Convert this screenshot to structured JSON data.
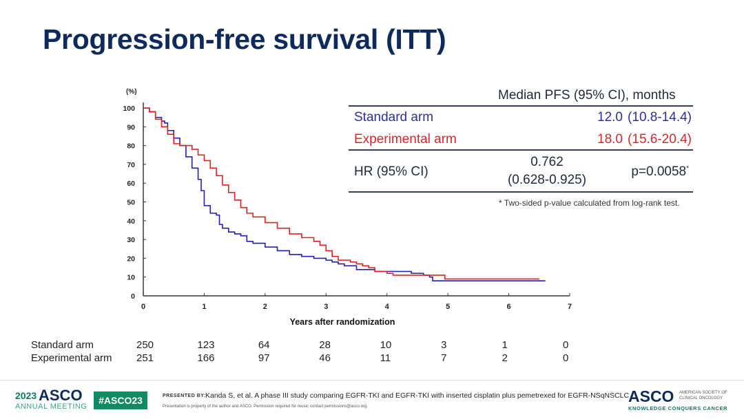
{
  "title": "Progression-free survival (ITT)",
  "chart_data": {
    "type": "line",
    "subtype": "kaplan-meier",
    "ylabel": "(%)",
    "xlabel": "Years after randomization",
    "xlim": [
      0,
      7
    ],
    "ylim": [
      0,
      100
    ],
    "xticks": [
      0,
      1,
      2,
      3,
      4,
      5,
      6,
      7
    ],
    "yticks": [
      0,
      10,
      20,
      30,
      40,
      50,
      60,
      70,
      80,
      90,
      100
    ],
    "grid": false,
    "series": [
      {
        "name": "Standard arm",
        "color": "#1f1fb0",
        "x": [
          0,
          0.1,
          0.2,
          0.3,
          0.35,
          0.4,
          0.5,
          0.6,
          0.7,
          0.8,
          0.9,
          0.95,
          1.0,
          1.1,
          1.2,
          1.25,
          1.3,
          1.4,
          1.5,
          1.6,
          1.7,
          1.8,
          2.0,
          2.2,
          2.4,
          2.6,
          2.8,
          3.0,
          3.1,
          3.2,
          3.3,
          3.5,
          3.7,
          3.8,
          4.0,
          4.2,
          4.4,
          4.6,
          4.7,
          4.75,
          5.0,
          5.5,
          6.0,
          6.6
        ],
        "y": [
          100,
          98,
          95,
          93,
          92,
          88,
          84,
          80,
          74,
          68,
          62,
          56,
          48,
          44,
          43,
          38,
          36,
          34,
          33,
          32,
          29,
          28,
          26,
          24,
          22,
          21,
          20,
          19,
          18,
          17,
          16,
          14,
          14,
          13,
          13,
          13,
          12,
          11,
          10,
          8,
          8,
          8,
          8,
          8
        ]
      },
      {
        "name": "Experimental arm",
        "color": "#e02020",
        "x": [
          0,
          0.1,
          0.2,
          0.3,
          0.4,
          0.5,
          0.6,
          0.7,
          0.8,
          0.9,
          1.0,
          1.1,
          1.2,
          1.3,
          1.4,
          1.5,
          1.6,
          1.7,
          1.8,
          2.0,
          2.2,
          2.4,
          2.6,
          2.8,
          2.9,
          3.0,
          3.1,
          3.2,
          3.4,
          3.5,
          3.6,
          3.7,
          3.8,
          4.0,
          4.1,
          4.5,
          4.7,
          4.95,
          5.5,
          6.0,
          6.5
        ],
        "y": [
          100,
          98,
          94,
          90,
          86,
          81,
          80,
          80,
          78,
          75,
          72,
          68,
          64,
          59,
          55,
          51,
          47,
          44,
          42,
          39,
          36,
          33,
          31,
          29,
          27,
          24,
          21,
          19,
          18,
          17,
          16,
          15,
          13,
          12,
          11,
          11,
          11,
          9,
          9,
          9,
          9
        ]
      }
    ],
    "numbers_at_risk": {
      "labels": [
        "Standard arm",
        "Experimental arm"
      ],
      "times": [
        0,
        1,
        2,
        3,
        4,
        5,
        6,
        7
      ],
      "values": [
        [
          250,
          123,
          64,
          28,
          10,
          3,
          1,
          0
        ],
        [
          251,
          166,
          97,
          46,
          11,
          7,
          2,
          0
        ]
      ]
    }
  },
  "summary_table": {
    "header": "Median PFS (95% CI), months",
    "rows": [
      {
        "label": "Standard arm",
        "median": "12.0",
        "ci": "(10.8-14.4)"
      },
      {
        "label": "Experimental arm",
        "median": "18.0",
        "ci": "(15.6-20.4)"
      }
    ],
    "hr_label": "HR (95% CI)",
    "hr_value": "0.762",
    "hr_ci": "(0.628-0.925)",
    "p_value": "p=0.0058",
    "p_mark": "*",
    "footnote": "* Two-sided p-value calculated from log-rank test."
  },
  "colors": {
    "title": "#0d2a5c",
    "standard": "#2b2f9a",
    "experimental": "#d02a2a",
    "asco_green": "#0f8a63"
  },
  "footer": {
    "year": "2023",
    "asco": "ASCO",
    "annual_meeting": "ANNUAL MEETING",
    "hashtag": "#ASCO23",
    "presented_by": "PRESENTED BY:",
    "citation": "Kanda S, et al. A phase III study comparing EGFR-TKI and EGFR-TKI with inserted cisplatin plus pemetrexed for EGFR-NSqNSCLC",
    "disclaimer": "Presentation is property of the author and ASCO. Permission required for reuse; contact permissions@asco.org.",
    "logo": "ASCO",
    "society_line1": "AMERICAN SOCIETY OF",
    "society_line2": "CLINICAL ONCOLOGY",
    "tagline": "KNOWLEDGE CONQUERS CANCER"
  }
}
